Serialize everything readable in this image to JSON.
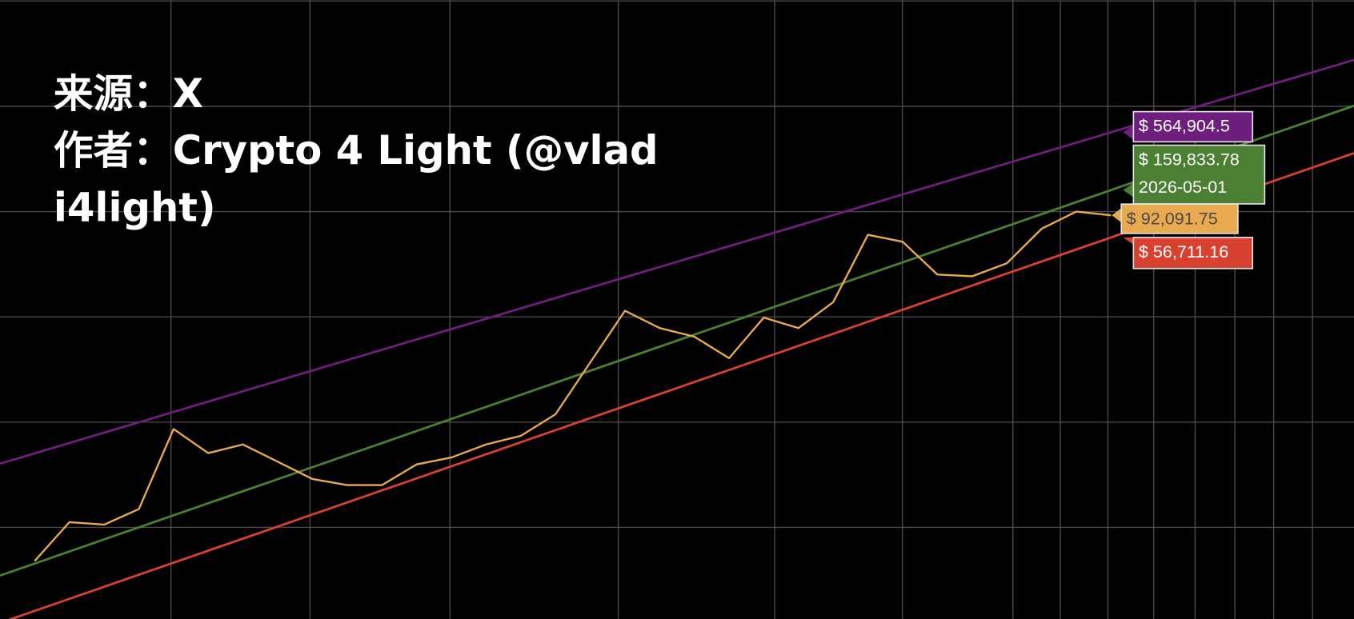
{
  "chart_data": {
    "type": "line",
    "source": "来源：X",
    "author_lines": [
      "作者：Crypto 4 Light (@vlad",
      "i4light)"
    ],
    "current_date": "2026-05-01",
    "log_scale": true,
    "grid": true,
    "ylim": [
      13.5,
      10190000
    ],
    "series": [
      {
        "color": "#e8a94f",
        "values": [
          null,
          47.9,
          112,
          106,
          149,
          859,
          507,
          612,
          420,
          288,
          252,
          252,
          396,
          461,
          612,
          740,
          1186,
          3681,
          11400,
          7820,
          6475,
          4044,
          9817,
          7820,
          13770,
          60100,
          51640,
          25200,
          24270,
          32200,
          68550,
          100000,
          92091.75,
          null,
          null,
          null,
          null,
          null,
          null,
          null
        ],
        "value_labels": [
          null,
          null,
          null,
          null,
          null,
          null,
          null,
          null,
          null,
          null,
          null,
          null,
          null,
          null,
          null,
          null,
          null,
          null,
          null,
          null,
          null,
          null,
          null,
          null,
          null,
          null,
          null,
          null,
          null,
          null,
          null,
          null,
          "$ 92,091.75",
          null,
          null,
          null,
          null,
          null,
          null,
          null
        ]
      },
      {
        "color": "#6e1e7c",
        "values": [
          402.3,
          504.5,
          632.8,
          793.4,
          995.2,
          1248,
          1565,
          1963,
          2462,
          3088,
          3873,
          4858,
          6093,
          7640,
          9583,
          12020,
          15080,
          18910,
          23710,
          29740,
          37300,
          46770,
          58670,
          73590,
          92290,
          115800,
          145200,
          182100,
          228400,
          286400,
          359200,
          450400,
          564904.5,
          708600,
          888600,
          1114000,
          1398000,
          1753000,
          2198000,
          2757000
        ],
        "value_labels": [
          null,
          null,
          null,
          null,
          null,
          null,
          null,
          null,
          null,
          null,
          null,
          null,
          null,
          null,
          null,
          null,
          null,
          null,
          null,
          null,
          null,
          null,
          null,
          null,
          null,
          null,
          null,
          null,
          null,
          null,
          null,
          null,
          "$ 564,904.5",
          null,
          null,
          null,
          null,
          null,
          null,
          null
        ]
      },
      {
        "color": "#4b7f34",
        "values": [
          34.8,
          45.3,
          59.0,
          76.8,
          99.9,
          130.0,
          169.3,
          220.3,
          286.7,
          373.1,
          485.7,
          631.8,
          822.6,
          1070,
          1393,
          1813,
          2360,
          3071,
          3997,
          5202,
          6769,
          8810,
          11470,
          14920,
          19420,
          25280,
          32900,
          42810,
          55720,
          72520,
          94370,
          122800,
          159833.78,
          208000,
          270700,
          352400,
          458600,
          596900,
          776900,
          1011000
        ],
        "value_labels": [
          null,
          null,
          null,
          null,
          null,
          null,
          null,
          null,
          null,
          null,
          null,
          null,
          null,
          null,
          null,
          null,
          null,
          null,
          null,
          null,
          null,
          null,
          null,
          null,
          null,
          null,
          null,
          null,
          null,
          null,
          null,
          null,
          "$ 159,833.78",
          null,
          null,
          null,
          null,
          null,
          null,
          null
        ]
      },
      {
        "color": "#d8402f",
        "values": [
          12.36,
          16.08,
          20.93,
          27.24,
          35.45,
          46.13,
          60.04,
          78.16,
          101.7,
          132.4,
          172.3,
          224.2,
          291.9,
          379.8,
          494.3,
          643.2,
          837.1,
          1089,
          1418,
          1846,
          2402,
          3126,
          4068,
          5294,
          6891,
          8969,
          11670,
          15190,
          19770,
          25730,
          33480,
          43580,
          56711.16,
          73820,
          96050,
          125000,
          162700,
          211800,
          275600,
          358700
        ],
        "value_labels": [
          null,
          null,
          null,
          null,
          null,
          null,
          null,
          null,
          null,
          null,
          null,
          null,
          null,
          null,
          null,
          null,
          null,
          null,
          null,
          null,
          null,
          null,
          null,
          null,
          null,
          null,
          null,
          null,
          null,
          null,
          null,
          null,
          "$ 56,711.16",
          null,
          null,
          null,
          null,
          null,
          null,
          null
        ]
      }
    ]
  }
}
